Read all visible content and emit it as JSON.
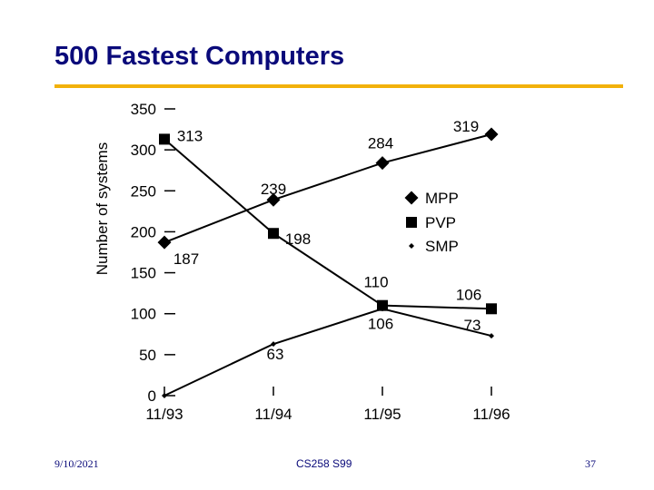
{
  "slide": {
    "title": "500 Fastest Computers",
    "footer_date": "9/10/2021",
    "footer_course": "CS258 S99",
    "page_number": "37",
    "title_color": "#0a0a7a",
    "rule_color": "#f2b10a"
  },
  "chart_data": {
    "type": "line",
    "title": "500 Fastest Computers",
    "xlabel": "",
    "ylabel": "Number of systems",
    "categories": [
      "11/93",
      "11/94",
      "11/95",
      "11/96"
    ],
    "ylim": [
      0,
      350
    ],
    "y_ticks": [
      "0",
      "50",
      "100",
      "150",
      "200",
      "250",
      "300",
      "350"
    ],
    "legend_position": "right",
    "series": [
      {
        "name": "MPP",
        "marker": "diamond",
        "values": [
          187,
          239,
          284,
          319
        ],
        "labels": [
          "187",
          "239",
          "284",
          "319"
        ]
      },
      {
        "name": "PVP",
        "marker": "square",
        "values": [
          313,
          198,
          110,
          106
        ],
        "labels": [
          "313",
          "198",
          "110",
          "106"
        ]
      },
      {
        "name": "SMP",
        "marker": "small-diamond",
        "values": [
          0,
          63,
          106,
          73
        ],
        "labels": [
          "",
          "63",
          "106",
          "73"
        ]
      }
    ]
  }
}
